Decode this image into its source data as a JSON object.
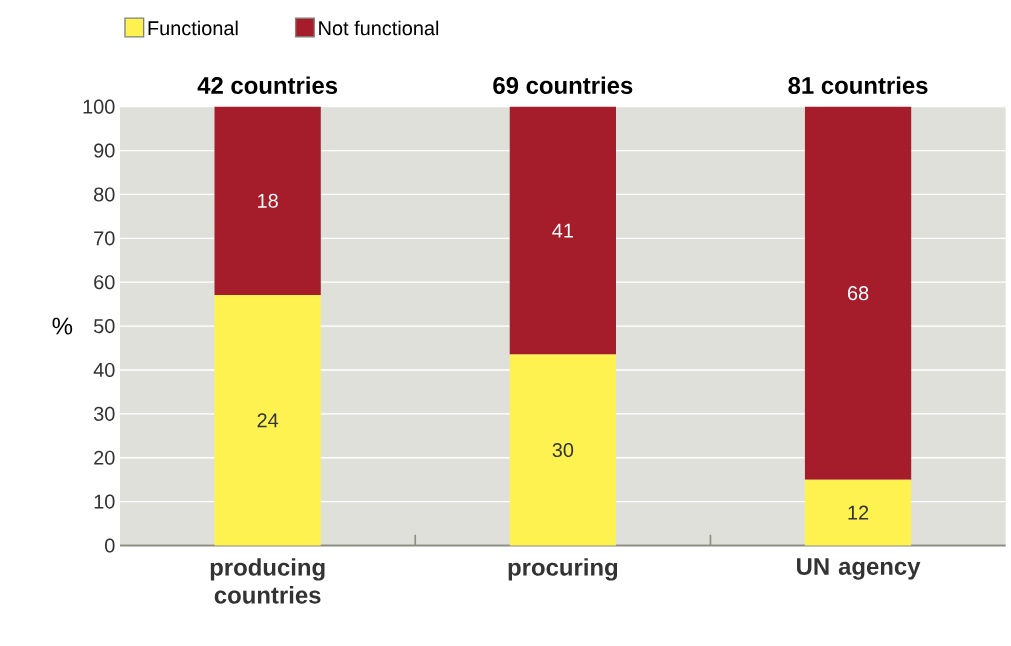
{
  "chart_data": {
    "type": "bar",
    "stacked": true,
    "categories": [
      "producing countries",
      "procuring",
      "UN agency"
    ],
    "series": [
      {
        "name": "Functional",
        "color": "#fef250",
        "values": [
          57.1,
          43.5,
          15
        ]
      },
      {
        "name": "Not functional",
        "color": "#a51d2b",
        "values": [
          42.9,
          56.5,
          85
        ]
      }
    ],
    "ylabel": "%",
    "ylim": [
      0,
      100
    ],
    "yticks": [
      0,
      10,
      20,
      30,
      40,
      50,
      60,
      70,
      80,
      90,
      100
    ],
    "grid": "y",
    "legend": "top left",
    "annotations": [
      {
        "text": "42 countries",
        "x": "producing countries",
        "y": 100
      },
      {
        "text": "69 countries",
        "x": "procuring",
        "y": 100
      },
      {
        "text": "81 countries",
        "x": "UN agency",
        "y": 100
      },
      "24",
      "30",
      "12",
      "18",
      "41",
      "68"
    ]
  }
}
